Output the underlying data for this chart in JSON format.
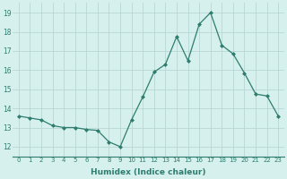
{
  "x": [
    0,
    1,
    2,
    3,
    4,
    5,
    6,
    7,
    8,
    9,
    10,
    11,
    12,
    13,
    14,
    15,
    16,
    17,
    18,
    19,
    20,
    21,
    22,
    23
  ],
  "y": [
    13.6,
    13.5,
    13.4,
    13.1,
    13.0,
    13.0,
    12.9,
    12.85,
    12.25,
    12.0,
    13.4,
    14.6,
    15.9,
    16.3,
    17.75,
    16.5,
    18.4,
    19.0,
    17.3,
    16.85,
    15.85,
    14.75,
    14.65,
    13.6
  ],
  "line_color": "#2e7d6e",
  "marker": "D",
  "marker_size": 2.0,
  "bg_color": "#d6f0ee",
  "grid_color": "#c0dcd8",
  "xlabel": "Humidex (Indice chaleur)",
  "ylabel_ticks": [
    12,
    13,
    14,
    15,
    16,
    17,
    18,
    19
  ],
  "xtick_labels": [
    "0",
    "1",
    "2",
    "3",
    "4",
    "5",
    "6",
    "7",
    "8",
    "9",
    "10",
    "11",
    "12",
    "13",
    "14",
    "15",
    "16",
    "17",
    "18",
    "19",
    "20",
    "21",
    "22",
    "23"
  ],
  "ylim": [
    11.5,
    19.5
  ],
  "xlim": [
    -0.5,
    23.5
  ]
}
